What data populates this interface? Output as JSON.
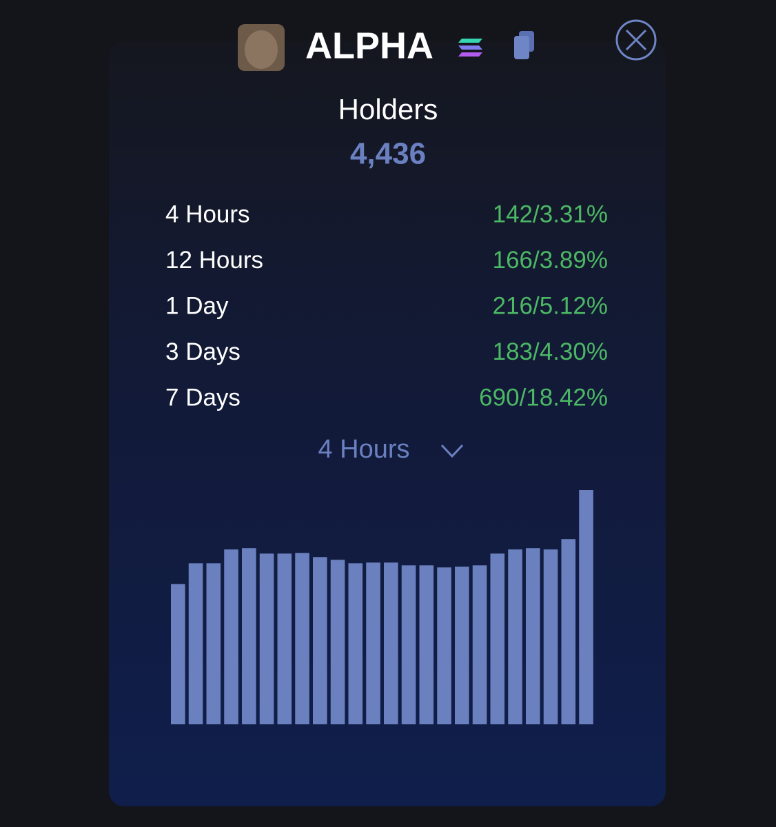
{
  "header": {
    "title": "ALPHA"
  },
  "holders": {
    "label": "Holders",
    "value": "4,436"
  },
  "stats": [
    {
      "label": "4 Hours",
      "value": "142/3.31%"
    },
    {
      "label": "12 Hours",
      "value": "166/3.89%"
    },
    {
      "label": "1 Day",
      "value": "216/5.12%"
    },
    {
      "label": "3 Days",
      "value": "183/4.30%"
    },
    {
      "label": "7 Days",
      "value": "690/18.42%"
    }
  ],
  "dropdown": {
    "label": "4 Hours"
  },
  "chart_data": {
    "type": "bar",
    "color": "#6b80bf",
    "values": [
      203,
      233,
      233,
      253,
      255,
      247,
      247,
      248,
      242,
      238,
      233,
      234,
      234,
      230,
      230,
      227,
      228,
      230,
      247,
      253,
      255,
      253,
      268,
      339
    ]
  }
}
